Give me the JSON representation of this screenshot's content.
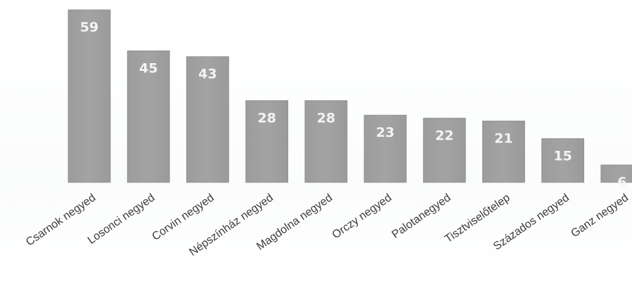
{
  "chart_data": {
    "type": "bar",
    "title": "",
    "xlabel": "",
    "ylabel": "",
    "categories": [
      "Csarnok negyed",
      "Losonci negyed",
      "Corvin negyed",
      "Népszínház negyed",
      "Magdolna negyed",
      "Orczy negyed",
      "Palotanegyed",
      "Tisztviselőtelep",
      "Százados negyed",
      "Ganz negyed"
    ],
    "values": [
      59,
      45,
      43,
      28,
      28,
      23,
      22,
      21,
      15,
      6
    ],
    "data_labels": [
      "59",
      "45",
      "43",
      "28",
      "28",
      "23",
      "22",
      "21",
      "15",
      "6"
    ],
    "ylim": [
      0,
      59
    ],
    "grid": false,
    "legend": "none",
    "colors": {
      "bar": "#a3a3a3",
      "bar_edge": "#8f8f8f",
      "data_label": "#f4f4f4",
      "category_label": "#3c3c3c"
    }
  }
}
